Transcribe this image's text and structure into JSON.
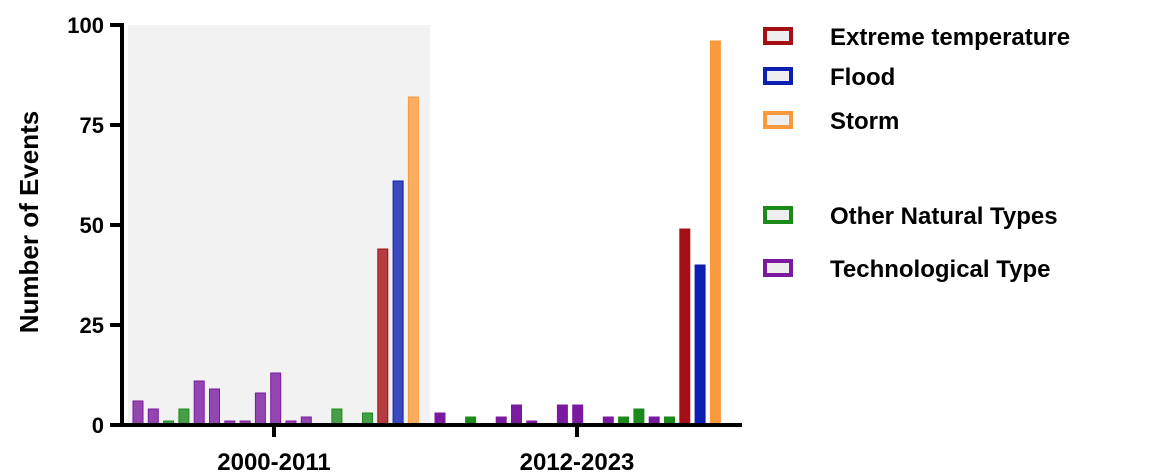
{
  "chart_data": {
    "type": "bar",
    "ylabel": "Number of Events",
    "xlabel": "",
    "ylim": [
      0,
      100
    ],
    "yticks": [
      0,
      25,
      50,
      75,
      100
    ],
    "categories": [
      "2000-2011",
      "2012-2023"
    ],
    "grid": false,
    "shaded_region": "2000-2011",
    "legend_position": "right",
    "legend": [
      {
        "name": "Extreme temperature",
        "color": "#a50f15"
      },
      {
        "name": "Flood",
        "color": "#0b1fb0"
      },
      {
        "name": "Storm",
        "color": "#fb9a3c"
      },
      {
        "name": "Other Natural Types",
        "color": "#1a8a1a"
      },
      {
        "name": "Technological Type",
        "color": "#7a1aa0"
      }
    ],
    "groups": [
      {
        "category": "2000-2011",
        "bars": [
          {
            "type": "Technological Type",
            "value": 6
          },
          {
            "type": "Technological Type",
            "value": 4
          },
          {
            "type": "Other Natural Types",
            "value": 1
          },
          {
            "type": "Other Natural Types",
            "value": 4
          },
          {
            "type": "Technological Type",
            "value": 11
          },
          {
            "type": "Technological Type",
            "value": 9
          },
          {
            "type": "Technological Type",
            "value": 1
          },
          {
            "type": "Technological Type",
            "value": 1
          },
          {
            "type": "Technological Type",
            "value": 8
          },
          {
            "type": "Technological Type",
            "value": 13
          },
          {
            "type": "Technological Type",
            "value": 1
          },
          {
            "type": "Technological Type",
            "value": 2
          },
          {
            "type": "Other Natural Types",
            "value": 0
          },
          {
            "type": "Other Natural Types",
            "value": 4
          },
          {
            "type": "Other Natural Types",
            "value": 0
          },
          {
            "type": "Other Natural Types",
            "value": 3
          },
          {
            "type": "Extreme temperature",
            "value": 44
          },
          {
            "type": "Flood",
            "value": 61
          },
          {
            "type": "Storm",
            "value": 82
          }
        ]
      },
      {
        "category": "2012-2023",
        "bars": [
          {
            "type": "Technological Type",
            "value": 3
          },
          {
            "type": "Other Natural Types",
            "value": 0
          },
          {
            "type": "Other Natural Types",
            "value": 2
          },
          {
            "type": "Other Natural Types",
            "value": 0
          },
          {
            "type": "Technological Type",
            "value": 2
          },
          {
            "type": "Technological Type",
            "value": 5
          },
          {
            "type": "Technological Type",
            "value": 1
          },
          {
            "type": "Technological Type",
            "value": 0
          },
          {
            "type": "Technological Type",
            "value": 5
          },
          {
            "type": "Technological Type",
            "value": 5
          },
          {
            "type": "Technological Type",
            "value": 0
          },
          {
            "type": "Technological Type",
            "value": 2
          },
          {
            "type": "Other Natural Types",
            "value": 2
          },
          {
            "type": "Other Natural Types",
            "value": 4
          },
          {
            "type": "Technological Type",
            "value": 2
          },
          {
            "type": "Other Natural Types",
            "value": 2
          },
          {
            "type": "Extreme temperature",
            "value": 49
          },
          {
            "type": "Flood",
            "value": 40
          },
          {
            "type": "Storm",
            "value": 96
          }
        ]
      }
    ]
  }
}
